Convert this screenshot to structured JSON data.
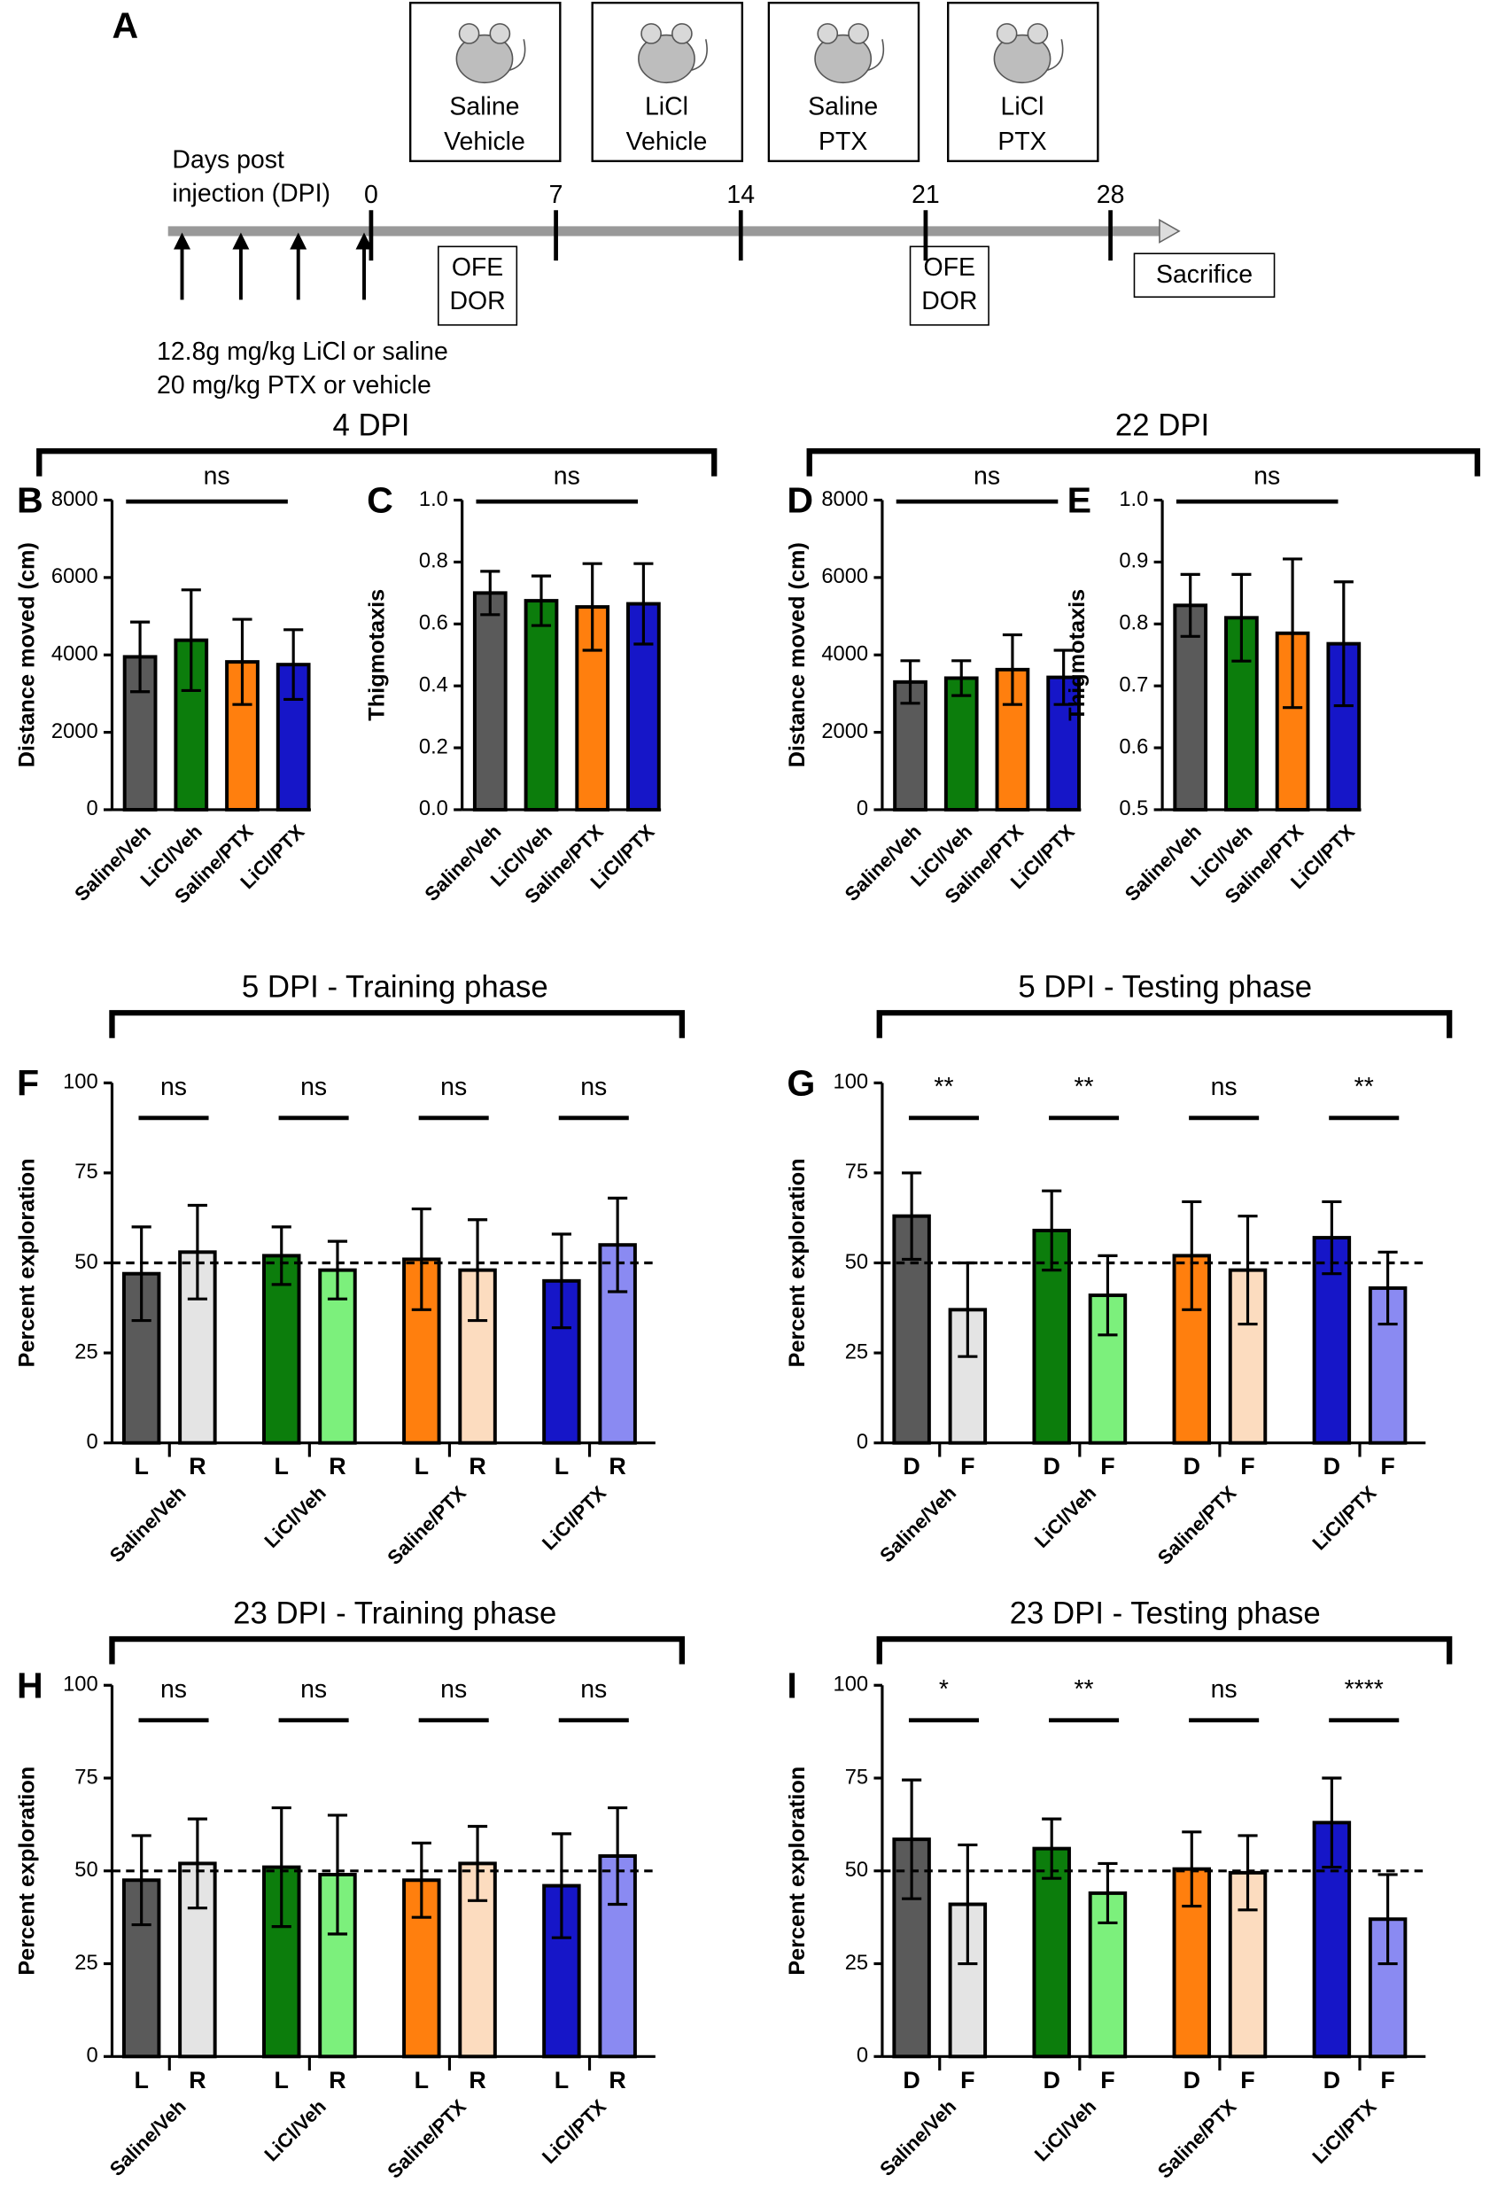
{
  "timeline": {
    "label": "A",
    "axis_title": [
      "Days post",
      "injection (DPI)"
    ],
    "days": [
      0,
      7,
      14,
      21,
      28
    ],
    "treatments": [
      [
        "Saline",
        "Vehicle"
      ],
      [
        "LiCl",
        "Vehicle"
      ],
      [
        "Saline",
        "PTX"
      ],
      [
        "LiCl",
        "PTX"
      ]
    ],
    "tests": [
      [
        "OFE",
        "DOR"
      ],
      [
        "OFE",
        "DOR"
      ]
    ],
    "endpoint": "Sacrifice",
    "dosing": [
      "12.8g mg/kg LiCl or saline",
      "20 mg/kg PTX or vehicle"
    ]
  },
  "group_titles": [
    "4 DPI",
    "22 DPI",
    "5 DPI - Training phase",
    "5 DPI - Testing phase",
    "23 DPI - Training phase",
    "23 DPI - Testing phase"
  ],
  "chart_data": [
    {
      "panel": "B",
      "type": "bar",
      "ylabel": "Distance moved  (cm)",
      "categories": [
        "Saline/Veh",
        "LiCl/Veh",
        "Saline/PTX",
        "LiCl/PTX"
      ],
      "values": [
        3950,
        4380,
        3820,
        3750
      ],
      "errors": [
        900,
        1300,
        1100,
        900
      ],
      "colors": [
        "#5a5a5a",
        "#0c7d0c",
        "#ff7f0e",
        "#1616c8"
      ],
      "ylim": [
        0,
        8000
      ],
      "yticks": [
        0,
        2000,
        4000,
        6000,
        8000
      ],
      "annotation": "ns"
    },
    {
      "panel": "C",
      "type": "bar",
      "ylabel": "Thigmotaxis",
      "categories": [
        "Saline/Veh",
        "LiCl/Veh",
        "Saline/PTX",
        "LiCl/PTX"
      ],
      "values": [
        0.7,
        0.675,
        0.655,
        0.665
      ],
      "errors": [
        0.07,
        0.08,
        0.14,
        0.13
      ],
      "colors": [
        "#5a5a5a",
        "#0c7d0c",
        "#ff7f0e",
        "#1616c8"
      ],
      "ylim": [
        0,
        1
      ],
      "yticks": [
        {
          "value": 0,
          "label": "0.0"
        },
        0.2,
        0.4,
        0.6,
        0.8,
        {
          "value": 1,
          "label": "1.0"
        }
      ],
      "annotation": "ns"
    },
    {
      "panel": "D",
      "type": "bar",
      "ylabel": "Distance moved (cm)",
      "categories": [
        "Saline/Veh",
        "LiCl/Veh",
        "Saline/PTX",
        "LiCl/PTX"
      ],
      "values": [
        3300,
        3400,
        3620,
        3420
      ],
      "errors": [
        550,
        450,
        900,
        700
      ],
      "colors": [
        "#5a5a5a",
        "#0c7d0c",
        "#ff7f0e",
        "#1616c8"
      ],
      "ylim": [
        0,
        8000
      ],
      "yticks": [
        0,
        2000,
        4000,
        6000,
        8000
      ],
      "annotation": "ns"
    },
    {
      "panel": "E",
      "type": "bar",
      "ylabel": "Thigmotaxis",
      "categories": [
        "Saline/Veh",
        "LiCl/Veh",
        "Saline/PTX",
        "LiCl/PTX"
      ],
      "values": [
        0.83,
        0.81,
        0.785,
        0.768
      ],
      "errors": [
        0.05,
        0.07,
        0.12,
        0.1
      ],
      "colors": [
        "#5a5a5a",
        "#0c7d0c",
        "#ff7f0e",
        "#1616c8"
      ],
      "ylim": [
        0.5,
        1
      ],
      "yticks": [
        0.5,
        0.6,
        0.7,
        0.8,
        0.9,
        {
          "value": 1,
          "label": "1.0"
        }
      ],
      "annotation": "ns"
    },
    {
      "panel": "F",
      "type": "grouped_bar",
      "ylabel": "Percent exploration",
      "categories": [
        "Saline/Veh",
        "LiCl/Veh",
        "Saline/PTX",
        "LiCl/PTX"
      ],
      "series": [
        {
          "name": "L",
          "colors": [
            "#5a5a5a",
            "#0c7d0c",
            "#ff7f0e",
            "#1616c8"
          ],
          "values": [
            47,
            52,
            51,
            45
          ],
          "errors": [
            13,
            8,
            14,
            13
          ]
        },
        {
          "name": "R",
          "colors": [
            "#e4e4e4",
            "#7cf07c",
            "#fcdcbf",
            "#8a8af2"
          ],
          "values": [
            53,
            48,
            48,
            55
          ],
          "errors": [
            13,
            8,
            14,
            13
          ]
        }
      ],
      "annotations": [
        "ns",
        "ns",
        "ns",
        "ns"
      ],
      "reference_line": 50,
      "ylim": [
        0,
        100
      ],
      "yticks": [
        0,
        25,
        50,
        75,
        100
      ]
    },
    {
      "panel": "G",
      "type": "grouped_bar",
      "ylabel": "Percent exploration",
      "categories": [
        "Saline/Veh",
        "LiCl/Veh",
        "Saline/PTX",
        "LiCl/PTX"
      ],
      "series": [
        {
          "name": "D",
          "colors": [
            "#5a5a5a",
            "#0c7d0c",
            "#ff7f0e",
            "#1616c8"
          ],
          "values": [
            63,
            59,
            52,
            57
          ],
          "errors": [
            12,
            11,
            15,
            10
          ]
        },
        {
          "name": "F",
          "colors": [
            "#e4e4e4",
            "#7cf07c",
            "#fcdcbf",
            "#8a8af2"
          ],
          "values": [
            37,
            41,
            48,
            43
          ],
          "errors": [
            13,
            11,
            15,
            10
          ]
        }
      ],
      "annotations": [
        "**",
        "**",
        "ns",
        "**"
      ],
      "reference_line": 50,
      "ylim": [
        0,
        100
      ],
      "yticks": [
        0,
        25,
        50,
        75,
        100
      ]
    },
    {
      "panel": "H",
      "type": "grouped_bar",
      "ylabel": "Percent exploration",
      "categories": [
        "Saline/Veh",
        "LiCl/Veh",
        "Saline/PTX",
        "LiCl/PTX"
      ],
      "series": [
        {
          "name": "L",
          "colors": [
            "#5a5a5a",
            "#0c7d0c",
            "#ff7f0e",
            "#1616c8"
          ],
          "values": [
            47.5,
            51,
            47.5,
            46
          ],
          "errors": [
            12,
            16,
            10,
            14
          ]
        },
        {
          "name": "R",
          "colors": [
            "#e4e4e4",
            "#7cf07c",
            "#fcdcbf",
            "#8a8af2"
          ],
          "values": [
            52,
            49,
            52,
            54
          ],
          "errors": [
            12,
            16,
            10,
            13
          ]
        }
      ],
      "annotations": [
        "ns",
        "ns",
        "ns",
        "ns"
      ],
      "reference_line": 50,
      "ylim": [
        0,
        100
      ],
      "yticks": [
        0,
        25,
        50,
        75,
        100
      ]
    },
    {
      "panel": "I",
      "type": "grouped_bar",
      "ylabel": "Percent exploration",
      "categories": [
        "Saline/Veh",
        "LiCl/Veh",
        "Saline/PTX",
        "LiCl/PTX"
      ],
      "series": [
        {
          "name": "D",
          "colors": [
            "#5a5a5a",
            "#0c7d0c",
            "#ff7f0e",
            "#1616c8"
          ],
          "values": [
            58.5,
            56,
            50.5,
            63
          ],
          "errors": [
            16,
            8,
            10,
            12
          ]
        },
        {
          "name": "F",
          "colors": [
            "#e4e4e4",
            "#7cf07c",
            "#fcdcbf",
            "#8a8af2"
          ],
          "values": [
            41,
            44,
            49.5,
            37
          ],
          "errors": [
            16,
            8,
            10,
            12
          ]
        }
      ],
      "annotations": [
        "*",
        "**",
        "ns",
        "****"
      ],
      "reference_line": 50,
      "ylim": [
        0,
        100
      ],
      "yticks": [
        0,
        25,
        50,
        75,
        100
      ]
    }
  ]
}
